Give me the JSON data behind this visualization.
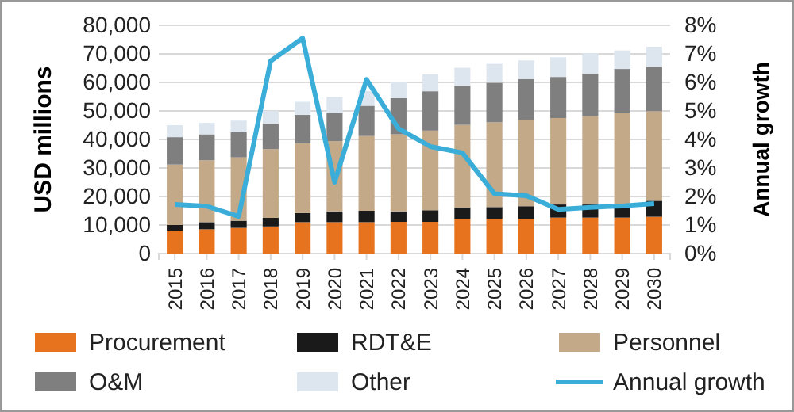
{
  "chart_data": {
    "type": "bar",
    "stacked": true,
    "ylabel": "USD millions",
    "y2label": "Annual growth",
    "categories": [
      "2015",
      "2016",
      "2017",
      "2018",
      "2019",
      "2020",
      "2021",
      "2022",
      "2023",
      "2024",
      "2025",
      "2026",
      "2027",
      "2028",
      "2029",
      "2030"
    ],
    "series": [
      {
        "name": "Procurement",
        "color": "#e8731f",
        "values": [
          8000,
          8500,
          9000,
          9500,
          11000,
          11000,
          11000,
          11100,
          11100,
          12200,
          12200,
          12200,
          12600,
          12600,
          12600,
          12900
        ]
      },
      {
        "name": "RDT&E",
        "color": "#1a1a1a",
        "values": [
          2000,
          2500,
          2500,
          3000,
          3200,
          3800,
          4000,
          3700,
          4100,
          3900,
          4100,
          4400,
          4600,
          4600,
          4600,
          5600
        ]
      },
      {
        "name": "Personnel",
        "color": "#c4a988",
        "values": [
          21200,
          21700,
          22200,
          24100,
          24400,
          24600,
          26200,
          27000,
          27900,
          29000,
          29700,
          30200,
          30300,
          31000,
          32000,
          31400
        ]
      },
      {
        "name": "O&M",
        "color": "#7f7f7f",
        "values": [
          9600,
          9100,
          8800,
          9000,
          10000,
          9800,
          10600,
          12700,
          13800,
          13700,
          13900,
          14400,
          14400,
          14800,
          15500,
          15700
        ]
      },
      {
        "name": "Other",
        "color": "#dde6ef",
        "values": [
          4200,
          4000,
          4100,
          4400,
          4600,
          5700,
          5200,
          5500,
          5900,
          6300,
          6600,
          6500,
          6900,
          7200,
          6500,
          6900
        ]
      },
      {
        "name": "Annual growth",
        "type": "line",
        "axis": "y2",
        "color": "#3aaed8",
        "values": [
          1.72,
          1.66,
          1.3,
          6.75,
          7.55,
          2.5,
          6.1,
          4.38,
          3.75,
          3.53,
          2.1,
          2.03,
          1.55,
          1.62,
          1.67,
          1.75
        ]
      }
    ],
    "ylim": [
      0,
      80000
    ],
    "yticks": [
      {
        "value": 0,
        "label": "0"
      },
      {
        "value": 10000,
        "label": "10,000"
      },
      {
        "value": 20000,
        "label": "20,000"
      },
      {
        "value": 30000,
        "label": "30,000"
      },
      {
        "value": 40000,
        "label": "40,000"
      },
      {
        "value": 50000,
        "label": "50,000"
      },
      {
        "value": 60000,
        "label": "60,000"
      },
      {
        "value": 70000,
        "label": "70,000"
      },
      {
        "value": 80000,
        "label": "80,000"
      }
    ],
    "y2lim": [
      0,
      8
    ],
    "y2ticks": [
      {
        "value": 0,
        "label": "0%"
      },
      {
        "value": 1,
        "label": "1%"
      },
      {
        "value": 2,
        "label": "2%"
      },
      {
        "value": 3,
        "label": "3%"
      },
      {
        "value": 4,
        "label": "4%"
      },
      {
        "value": 5,
        "label": "5%"
      },
      {
        "value": 6,
        "label": "6%"
      },
      {
        "value": 7,
        "label": "7%"
      },
      {
        "value": 8,
        "label": "8%"
      }
    ],
    "grid": "y",
    "legend": "bottom",
    "marker": "none",
    "line_style": "solid"
  }
}
